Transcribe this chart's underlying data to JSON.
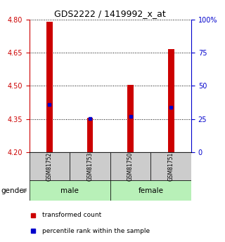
{
  "title": "GDS2222 / 1419992_x_at",
  "samples": [
    "GSM81752",
    "GSM81753",
    "GSM81750",
    "GSM81751"
  ],
  "groups": [
    "male",
    "male",
    "female",
    "female"
  ],
  "bar_tops": [
    4.79,
    4.355,
    4.505,
    4.665
  ],
  "bar_base": 4.2,
  "percentile_values": [
    4.415,
    4.352,
    4.362,
    4.405
  ],
  "ylim_left": [
    4.2,
    4.8
  ],
  "yticks_left": [
    4.2,
    4.35,
    4.5,
    4.65,
    4.8
  ],
  "ylim_right": [
    0,
    100
  ],
  "yticks_right": [
    0,
    25,
    50,
    75,
    100
  ],
  "ytick_right_labels": [
    "0",
    "25",
    "50",
    "75",
    "100%"
  ],
  "bar_color": "#cc0000",
  "percentile_color": "#0000cc",
  "group_colors": [
    "#b8f0b8",
    "#b8f0b8"
  ],
  "gender_spans": [
    {
      "name": "male",
      "start": 0,
      "end": 1
    },
    {
      "name": "female",
      "start": 2,
      "end": 3
    }
  ],
  "sample_box_color": "#cccccc",
  "left_axis_color": "#cc0000",
  "right_axis_color": "#0000cc",
  "bar_width": 0.15,
  "legend_red_label": "transformed count",
  "legend_blue_label": "percentile rank within the sample",
  "gender_label": "gender"
}
